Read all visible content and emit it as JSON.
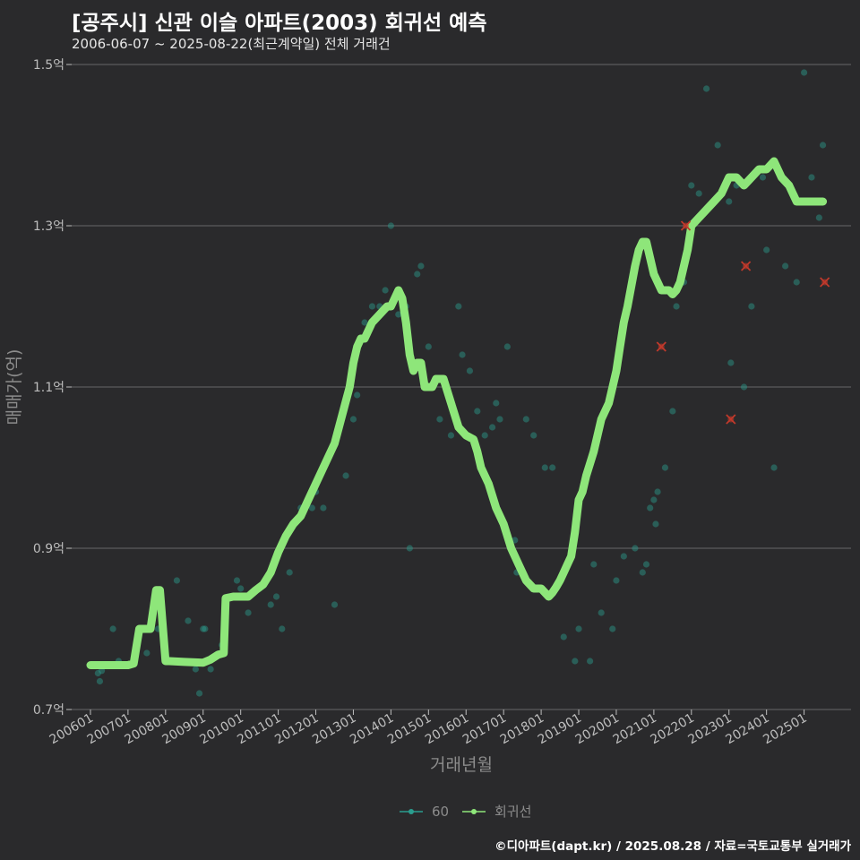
{
  "title": "[공주시] 신관 이슬 아파트(2003) 회귀선 예측",
  "subtitle": "2006-06-07 ~ 2025-08-22(최근계약일) 전체 거래건",
  "caption": "©디아파트(dapt.kr) / 2025.08.28 / 자료=국토교통부 실거래가",
  "chart_data": {
    "type": "scatter",
    "title": "[공주시] 신관 이슬 아파트(2003) 회귀선 예측",
    "xlabel": "거래년월",
    "ylabel": "매매가(억)",
    "ylim": [
      0.7,
      1.5
    ],
    "xlim": [
      2005.5,
      2026.25
    ],
    "y_ticks": [
      0.7,
      0.9,
      1.1,
      1.3,
      1.5
    ],
    "y_tick_labels": [
      "0.7억",
      "0.9억",
      "1.1억",
      "1.3억",
      "1.5억"
    ],
    "x_ticks": [
      2006,
      2007,
      2008,
      2009,
      2010,
      2011,
      2012,
      2013,
      2014,
      2015,
      2016,
      2017,
      2018,
      2019,
      2020,
      2021,
      2022,
      2023,
      2024,
      2025
    ],
    "x_tick_labels": [
      "200601",
      "200701",
      "200801",
      "200901",
      "201001",
      "201101",
      "201201",
      "201301",
      "201401",
      "201501",
      "201601",
      "201701",
      "201801",
      "201901",
      "202001",
      "202101",
      "202201",
      "202301",
      "202401",
      "202501"
    ],
    "grid": true,
    "legend": {
      "position": "bottom",
      "items": [
        {
          "label": "60",
          "color": "#2a9d8f"
        },
        {
          "label": "회귀선",
          "color": "#8ee67a"
        }
      ]
    },
    "series": [
      {
        "name": "60",
        "kind": "points",
        "color": "#2a9d8f",
        "x": [
          2006.2,
          2006.25,
          2006.3,
          2006.6,
          2006.75,
          2007.2,
          2007.5,
          2007.8,
          2008.3,
          2008.6,
          2008.8,
          2008.9,
          2009.0,
          2009.05,
          2009.1,
          2009.2,
          2009.5,
          2009.9,
          2010.0,
          2010.2,
          2010.5,
          2010.8,
          2010.95,
          2011.1,
          2011.3,
          2011.6,
          2011.9,
          2012.0,
          2012.2,
          2012.5,
          2012.8,
          2013.0,
          2013.1,
          2013.3,
          2013.5,
          2013.7,
          2013.85,
          2014.0,
          2014.2,
          2014.4,
          2014.5,
          2014.7,
          2014.8,
          2015.0,
          2015.3,
          2015.6,
          2015.8,
          2015.9,
          2016.1,
          2016.3,
          2016.5,
          2016.7,
          2016.8,
          2016.9,
          2017.1,
          2017.3,
          2017.35,
          2017.6,
          2017.8,
          2018.1,
          2018.3,
          2018.6,
          2018.9,
          2019.0,
          2019.3,
          2019.4,
          2019.6,
          2019.9,
          2020.0,
          2020.2,
          2020.5,
          2020.7,
          2020.8,
          2020.9,
          2021.0,
          2021.05,
          2021.1,
          2021.3,
          2021.5,
          2021.6,
          2021.8,
          2022.0,
          2022.2,
          2022.4,
          2022.7,
          2023.0,
          2023.05,
          2023.2,
          2023.4,
          2023.6,
          2023.9,
          2024.0,
          2024.2,
          2024.5,
          2024.8,
          2025.0,
          2025.2,
          2025.4,
          2025.5
        ],
        "y": [
          0.745,
          0.735,
          0.748,
          0.8,
          0.76,
          0.77,
          0.77,
          0.8,
          0.86,
          0.81,
          0.75,
          0.72,
          0.8,
          0.8,
          0.76,
          0.75,
          0.78,
          0.86,
          0.85,
          0.82,
          0.85,
          0.83,
          0.84,
          0.8,
          0.87,
          0.95,
          0.95,
          0.97,
          0.95,
          0.83,
          0.99,
          1.06,
          1.09,
          1.18,
          1.2,
          1.2,
          1.22,
          1.3,
          1.19,
          1.2,
          0.9,
          1.24,
          1.25,
          1.15,
          1.06,
          1.04,
          1.2,
          1.14,
          1.12,
          1.07,
          1.04,
          1.05,
          1.08,
          1.06,
          1.15,
          0.91,
          0.87,
          1.06,
          1.04,
          1.0,
          1.0,
          0.79,
          0.76,
          0.8,
          0.76,
          0.88,
          0.82,
          0.8,
          0.86,
          0.89,
          0.9,
          0.87,
          0.88,
          0.95,
          0.96,
          0.93,
          0.97,
          1.0,
          1.07,
          1.2,
          1.23,
          1.35,
          1.34,
          1.47,
          1.4,
          1.33,
          1.13,
          1.35,
          1.1,
          1.2,
          1.36,
          1.27,
          1.0,
          1.25,
          1.23,
          1.49,
          1.36,
          1.31,
          1.4
        ]
      },
      {
        "name": "회귀선",
        "kind": "line",
        "color": "#8ee67a",
        "x": [
          2006.0,
          2006.5,
          2007.0,
          2007.15,
          2007.3,
          2007.6,
          2007.75,
          2007.85,
          2008.0,
          2008.1,
          2008.5,
          2009.0,
          2009.2,
          2009.4,
          2009.55,
          2009.6,
          2009.8,
          2010.0,
          2010.2,
          2010.4,
          2010.6,
          2010.8,
          2011.0,
          2011.2,
          2011.4,
          2011.6,
          2011.8,
          2012.0,
          2012.2,
          2012.4,
          2012.5,
          2012.7,
          2012.9,
          2013.0,
          2013.1,
          2013.2,
          2013.3,
          2013.5,
          2013.7,
          2013.9,
          2014.0,
          2014.2,
          2014.3,
          2014.4,
          2014.5,
          2014.6,
          2014.7,
          2014.8,
          2014.9,
          2015.0,
          2015.1,
          2015.2,
          2015.3,
          2015.4,
          2015.6,
          2015.8,
          2016.0,
          2016.2,
          2016.3,
          2016.4,
          2016.5,
          2016.6,
          2016.8,
          2017.0,
          2017.2,
          2017.4,
          2017.6,
          2017.8,
          2017.9,
          2018.0,
          2018.2,
          2018.3,
          2018.4,
          2018.5,
          2018.6,
          2018.7,
          2018.8,
          2018.9,
          2019.0,
          2019.1,
          2019.2,
          2019.4,
          2019.6,
          2019.8,
          2019.9,
          2020.0,
          2020.1,
          2020.2,
          2020.3,
          2020.5,
          2020.6,
          2020.7,
          2020.8,
          2020.9,
          2021.0,
          2021.1,
          2021.2,
          2021.3,
          2021.4,
          2021.5,
          2021.6,
          2021.7,
          2021.8,
          2021.9,
          2022.0,
          2022.2,
          2022.4,
          2022.6,
          2022.8,
          2023.0,
          2023.2,
          2023.4,
          2023.6,
          2023.8,
          2024.0,
          2024.2,
          2024.4,
          2024.6,
          2024.8,
          2025.0,
          2025.2,
          2025.4,
          2025.5
        ],
        "y": [
          0.755,
          0.755,
          0.755,
          0.757,
          0.8,
          0.8,
          0.848,
          0.848,
          0.76,
          0.76,
          0.759,
          0.758,
          0.762,
          0.768,
          0.77,
          0.838,
          0.84,
          0.84,
          0.84,
          0.848,
          0.855,
          0.87,
          0.895,
          0.915,
          0.93,
          0.94,
          0.96,
          0.98,
          1.0,
          1.02,
          1.03,
          1.065,
          1.1,
          1.13,
          1.15,
          1.16,
          1.16,
          1.18,
          1.19,
          1.2,
          1.2,
          1.22,
          1.21,
          1.18,
          1.14,
          1.12,
          1.13,
          1.13,
          1.1,
          1.1,
          1.1,
          1.11,
          1.11,
          1.11,
          1.08,
          1.05,
          1.04,
          1.035,
          1.02,
          1.0,
          0.99,
          0.98,
          0.95,
          0.93,
          0.9,
          0.88,
          0.86,
          0.85,
          0.85,
          0.85,
          0.84,
          0.845,
          0.852,
          0.86,
          0.87,
          0.88,
          0.89,
          0.92,
          0.96,
          0.97,
          0.99,
          1.02,
          1.06,
          1.08,
          1.1,
          1.12,
          1.15,
          1.18,
          1.2,
          1.25,
          1.27,
          1.28,
          1.28,
          1.26,
          1.24,
          1.23,
          1.22,
          1.22,
          1.22,
          1.215,
          1.22,
          1.23,
          1.25,
          1.27,
          1.3,
          1.31,
          1.32,
          1.33,
          1.34,
          1.36,
          1.36,
          1.35,
          1.36,
          1.37,
          1.37,
          1.38,
          1.36,
          1.35,
          1.33,
          1.33,
          1.33,
          1.33,
          1.33
        ]
      },
      {
        "name": "outliers",
        "kind": "cross",
        "color": "#c0392b",
        "x": [
          2021.85,
          2021.2,
          2023.05,
          2023.45,
          2025.55
        ],
        "y": [
          1.3,
          1.15,
          1.06,
          1.25,
          1.23
        ]
      }
    ]
  }
}
